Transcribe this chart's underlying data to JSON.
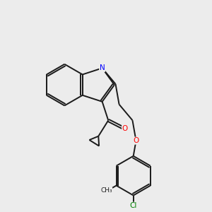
{
  "background_color": "#ececec",
  "bond_color": "#1a1a1a",
  "bond_width": 1.4,
  "atom_colors": {
    "O": "#ff0000",
    "N": "#0000ff",
    "Cl": "#008000",
    "C": "#1a1a1a"
  },
  "figsize": [
    3.0,
    3.0
  ],
  "dpi": 100,
  "xlim": [
    0,
    10
  ],
  "ylim": [
    0,
    10
  ]
}
